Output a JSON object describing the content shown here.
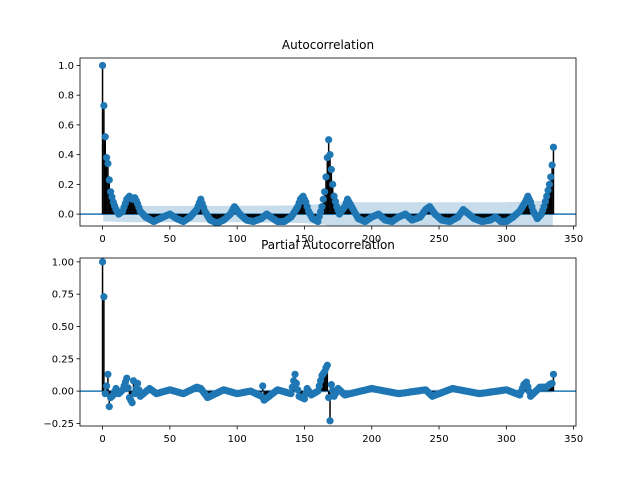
{
  "chart_data": [
    {
      "type": "stem",
      "title": "Autocorrelation",
      "xlabel": "",
      "ylabel": "",
      "xlim": [
        -16.75,
        351.75
      ],
      "ylim": [
        -0.08,
        1.05
      ],
      "xticks": [
        0,
        50,
        100,
        150,
        200,
        250,
        300,
        350
      ],
      "yticks": [
        0.0,
        0.2,
        0.4,
        0.6,
        0.8,
        1.0
      ],
      "ytick_labels": [
        "0.0",
        "0.2",
        "0.4",
        "0.6",
        "0.8",
        "1.0"
      ],
      "grid": false,
      "series_color": "#1f77b4",
      "confidence_band_color": "#1f77b4",
      "n_lags": 335,
      "anchors": [
        [
          0,
          1.0
        ],
        [
          1,
          0.73
        ],
        [
          2,
          0.52
        ],
        [
          3,
          0.38
        ],
        [
          4,
          0.34
        ],
        [
          5,
          0.23
        ],
        [
          6,
          0.15
        ],
        [
          8,
          0.08
        ],
        [
          10,
          0.03
        ],
        [
          12,
          0.0
        ],
        [
          15,
          0.02
        ],
        [
          18,
          0.1
        ],
        [
          20,
          0.12
        ],
        [
          22,
          0.1
        ],
        [
          24,
          0.11
        ],
        [
          26,
          0.07
        ],
        [
          28,
          0.02
        ],
        [
          32,
          -0.02
        ],
        [
          38,
          -0.05
        ],
        [
          45,
          -0.02
        ],
        [
          50,
          0.0
        ],
        [
          55,
          -0.03
        ],
        [
          60,
          -0.05
        ],
        [
          65,
          -0.02
        ],
        [
          70,
          0.03
        ],
        [
          73,
          0.1
        ],
        [
          76,
          0.02
        ],
        [
          80,
          -0.04
        ],
        [
          85,
          -0.06
        ],
        [
          90,
          -0.04
        ],
        [
          95,
          0.0
        ],
        [
          98,
          0.05
        ],
        [
          102,
          0.0
        ],
        [
          107,
          -0.04
        ],
        [
          112,
          -0.05
        ],
        [
          118,
          -0.03
        ],
        [
          122,
          0.0
        ],
        [
          125,
          -0.02
        ],
        [
          130,
          -0.05
        ],
        [
          135,
          -0.05
        ],
        [
          140,
          -0.02
        ],
        [
          143,
          0.02
        ],
        [
          145,
          0.05
        ],
        [
          147,
          0.1
        ],
        [
          149,
          0.12
        ],
        [
          151,
          0.08
        ],
        [
          153,
          0.02
        ],
        [
          156,
          -0.03
        ],
        [
          160,
          -0.05
        ],
        [
          163,
          0.05
        ],
        [
          165,
          0.15
        ],
        [
          166,
          0.25
        ],
        [
          167,
          0.38
        ],
        [
          168,
          0.5
        ],
        [
          169,
          0.4
        ],
        [
          170,
          0.3
        ],
        [
          171,
          0.2
        ],
        [
          172,
          0.12
        ],
        [
          174,
          0.05
        ],
        [
          176,
          0.0
        ],
        [
          180,
          0.05
        ],
        [
          182,
          0.1
        ],
        [
          185,
          0.05
        ],
        [
          190,
          -0.03
        ],
        [
          195,
          -0.05
        ],
        [
          200,
          -0.02
        ],
        [
          205,
          0.0
        ],
        [
          210,
          -0.04
        ],
        [
          215,
          -0.05
        ],
        [
          220,
          -0.02
        ],
        [
          225,
          0.0
        ],
        [
          230,
          -0.04
        ],
        [
          236,
          -0.02
        ],
        [
          240,
          0.03
        ],
        [
          243,
          0.05
        ],
        [
          247,
          0.0
        ],
        [
          252,
          -0.04
        ],
        [
          258,
          -0.05
        ],
        [
          264,
          -0.02
        ],
        [
          268,
          0.03
        ],
        [
          272,
          0.0
        ],
        [
          276,
          -0.03
        ],
        [
          282,
          -0.05
        ],
        [
          288,
          -0.04
        ],
        [
          292,
          -0.02
        ],
        [
          296,
          -0.05
        ],
        [
          300,
          -0.05
        ],
        [
          305,
          -0.02
        ],
        [
          310,
          0.02
        ],
        [
          314,
          0.08
        ],
        [
          316,
          0.12
        ],
        [
          318,
          0.08
        ],
        [
          320,
          0.02
        ],
        [
          323,
          -0.03
        ],
        [
          326,
          0.0
        ],
        [
          328,
          0.05
        ],
        [
          330,
          0.12
        ],
        [
          332,
          0.2
        ],
        [
          333,
          0.25
        ],
        [
          334,
          0.33
        ],
        [
          335,
          0.45
        ]
      ],
      "confidence_anchors": [
        [
          0,
          0.0
        ],
        [
          1,
          0.05
        ],
        [
          6,
          0.05
        ],
        [
          20,
          0.055
        ],
        [
          100,
          0.055
        ],
        [
          150,
          0.06
        ],
        [
          165,
          0.07
        ],
        [
          169,
          0.08
        ],
        [
          200,
          0.08
        ],
        [
          300,
          0.08
        ],
        [
          335,
          0.09
        ]
      ]
    },
    {
      "type": "stem",
      "title": "Partial Autocorrelation",
      "xlabel": "",
      "ylabel": "",
      "xlim": [
        -16.75,
        351.75
      ],
      "ylim": [
        -0.27,
        1.03
      ],
      "xticks": [
        0,
        50,
        100,
        150,
        200,
        250,
        300,
        350
      ],
      "yticks": [
        -0.25,
        0.0,
        0.25,
        0.5,
        0.75,
        1.0
      ],
      "ytick_labels": [
        "−0.25",
        "0.00",
        "0.25",
        "0.50",
        "0.75",
        "1.00"
      ],
      "grid": false,
      "series_color": "#1f77b4",
      "confidence_band_color": "#1f77b4",
      "n_lags": 335,
      "anchors": [
        [
          0,
          1.0
        ],
        [
          1,
          0.73
        ],
        [
          2,
          -0.02
        ],
        [
          3,
          0.04
        ],
        [
          4,
          0.13
        ],
        [
          5,
          -0.12
        ],
        [
          6,
          -0.05
        ],
        [
          8,
          -0.03
        ],
        [
          10,
          0.02
        ],
        [
          12,
          -0.02
        ],
        [
          15,
          0.01
        ],
        [
          18,
          0.1
        ],
        [
          20,
          -0.05
        ],
        [
          22,
          -0.09
        ],
        [
          23,
          0.08
        ],
        [
          24,
          -0.02
        ],
        [
          26,
          0.06
        ],
        [
          28,
          -0.04
        ],
        [
          35,
          0.02
        ],
        [
          40,
          -0.02
        ],
        [
          50,
          0.01
        ],
        [
          60,
          -0.02
        ],
        [
          70,
          0.03
        ],
        [
          73,
          0.02
        ],
        [
          78,
          -0.05
        ],
        [
          90,
          0.01
        ],
        [
          100,
          -0.02
        ],
        [
          110,
          0.0
        ],
        [
          118,
          -0.04
        ],
        [
          119,
          0.04
        ],
        [
          120,
          -0.07
        ],
        [
          130,
          0.01
        ],
        [
          140,
          -0.02
        ],
        [
          143,
          0.13
        ],
        [
          144,
          0.06
        ],
        [
          146,
          -0.04
        ],
        [
          148,
          -0.05
        ],
        [
          150,
          -0.06
        ],
        [
          152,
          0.02
        ],
        [
          155,
          -0.03
        ],
        [
          160,
          0.0
        ],
        [
          163,
          0.12
        ],
        [
          165,
          0.15
        ],
        [
          166,
          0.18
        ],
        [
          167,
          0.2
        ],
        [
          168,
          -0.05
        ],
        [
          169,
          -0.23
        ],
        [
          170,
          0.05
        ],
        [
          172,
          -0.04
        ],
        [
          175,
          0.02
        ],
        [
          180,
          -0.03
        ],
        [
          200,
          0.02
        ],
        [
          220,
          -0.02
        ],
        [
          240,
          0.01
        ],
        [
          245,
          -0.04
        ],
        [
          260,
          0.02
        ],
        [
          280,
          -0.02
        ],
        [
          300,
          0.01
        ],
        [
          310,
          -0.03
        ],
        [
          313,
          0.05
        ],
        [
          315,
          0.07
        ],
        [
          318,
          -0.04
        ],
        [
          325,
          0.03
        ],
        [
          330,
          0.03
        ],
        [
          332,
          0.05
        ],
        [
          334,
          0.06
        ],
        [
          335,
          0.13
        ]
      ],
      "confidence_anchors": [
        [
          0,
          0.0
        ],
        [
          1,
          0.012
        ],
        [
          335,
          0.012
        ]
      ]
    }
  ]
}
